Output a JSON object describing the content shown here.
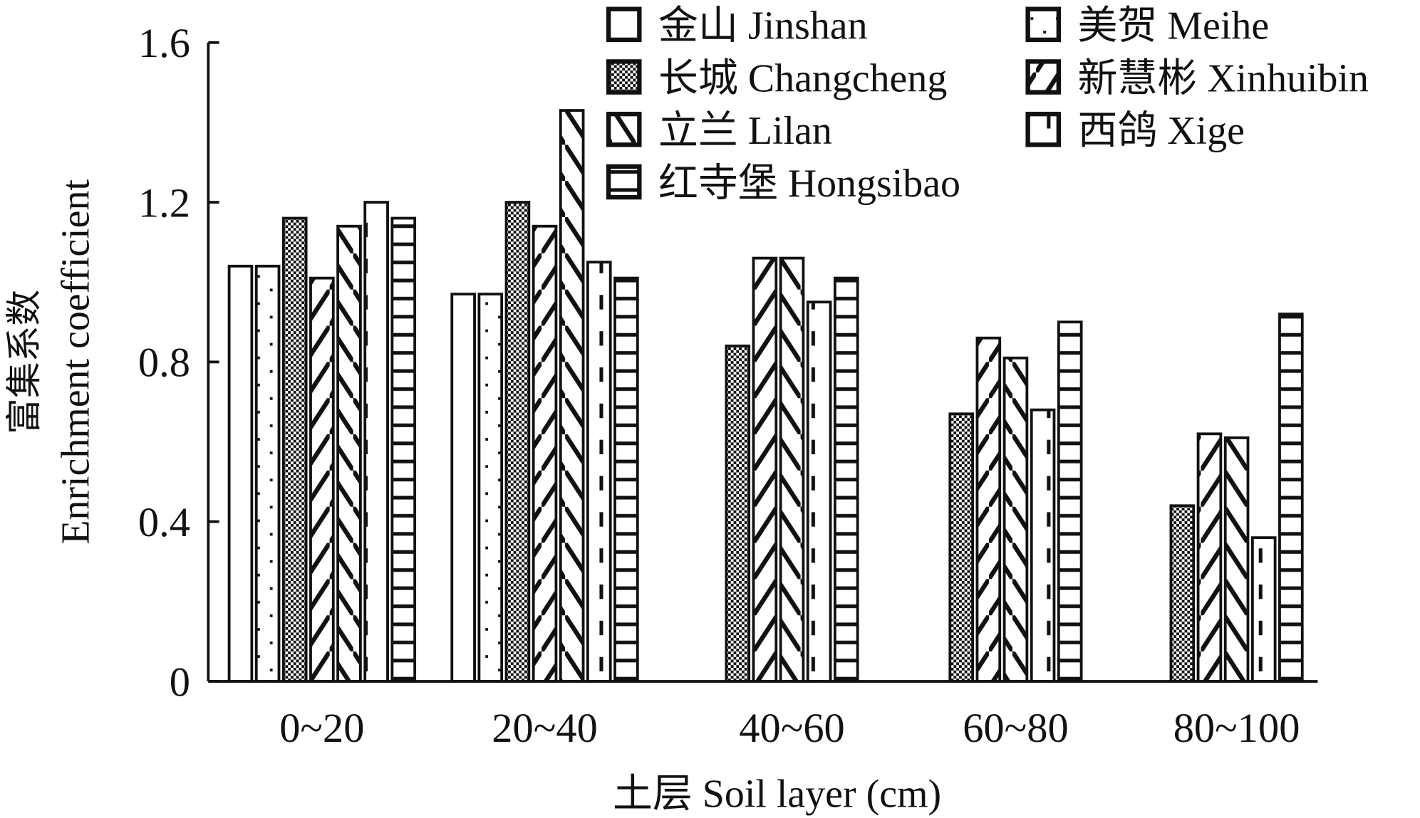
{
  "chart_data": {
    "type": "bar",
    "title": "",
    "xlabel": "土层 Soil layer (cm)",
    "ylabel_cn": "富集系数",
    "ylabel": "Enrichment coefficient",
    "ylim": [
      0,
      1.6
    ],
    "yticks": [
      "0",
      "0.4",
      "0.8",
      "1.2",
      "1.6"
    ],
    "ytick_values": [
      0,
      0.4,
      0.8,
      1.2,
      1.6
    ],
    "categories": [
      "0~20",
      "20~40",
      "40~60",
      "60~80",
      "80~100"
    ],
    "legend_position": "top-right",
    "series": [
      {
        "name": "金山 Jinshan",
        "pattern": "blank",
        "values": [
          1.04,
          0.97,
          0,
          0,
          0
        ]
      },
      {
        "name": "美贺 Meihe",
        "pattern": "dots",
        "values": [
          1.04,
          0.97,
          0,
          0,
          0
        ]
      },
      {
        "name": "长城 Changcheng",
        "pattern": "checker",
        "values": [
          1.16,
          1.2,
          0.84,
          0.67,
          0.44
        ]
      },
      {
        "name": "新慧彬 Xinhuibin",
        "pattern": "fdiag",
        "values": [
          1.01,
          1.14,
          1.06,
          0.86,
          0.62
        ]
      },
      {
        "name": "立兰 Lilan",
        "pattern": "bdiag",
        "values": [
          1.14,
          1.43,
          1.06,
          0.81,
          0.61
        ]
      },
      {
        "name": "西鸽 Xige",
        "pattern": "dash",
        "values": [
          1.2,
          1.05,
          0.95,
          0.68,
          0.36
        ]
      },
      {
        "name": "红寺堡 Hongsibao",
        "pattern": "hstripe",
        "values": [
          1.16,
          1.01,
          1.01,
          0.9,
          0.92
        ]
      }
    ]
  }
}
